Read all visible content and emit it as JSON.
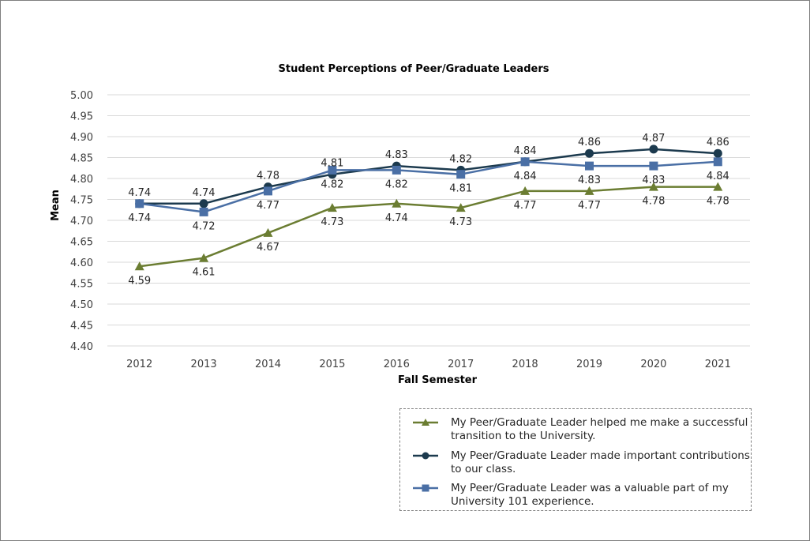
{
  "chart_data": {
    "type": "line",
    "title": "Student Perceptions of Peer/Graduate Leaders",
    "xlabel": "Fall Semester",
    "ylabel": "Mean",
    "categories": [
      "2012",
      "2013",
      "2014",
      "2015",
      "2016",
      "2017",
      "2018",
      "2019",
      "2020",
      "2021"
    ],
    "ylim": [
      4.4,
      5.0
    ],
    "yticks": [
      "4.40",
      "4.45",
      "4.50",
      "4.55",
      "4.60",
      "4.65",
      "4.70",
      "4.75",
      "4.80",
      "4.85",
      "4.90",
      "4.95",
      "5.00"
    ],
    "grid": true,
    "legend_position": "bottom-right",
    "series": [
      {
        "name": "My Peer/Graduate Leader helped me make a successful transition to the University.",
        "marker": "triangle",
        "color": "#6b7d32",
        "label_position": "below",
        "values": [
          4.59,
          4.61,
          4.67,
          4.73,
          4.74,
          4.73,
          4.77,
          4.77,
          4.78,
          4.78
        ]
      },
      {
        "name": "My Peer/Graduate Leader made important contributions to our class.",
        "marker": "circle",
        "color": "#1c3a4e",
        "label_position": "above",
        "values": [
          4.74,
          4.74,
          4.78,
          4.81,
          4.83,
          4.82,
          4.84,
          4.86,
          4.87,
          4.86
        ]
      },
      {
        "name": "My Peer/Graduate Leader was a valuable part of my University 101 experience.",
        "marker": "square",
        "color": "#4a6fa5",
        "label_position": "below",
        "values": [
          4.74,
          4.72,
          4.77,
          4.82,
          4.82,
          4.81,
          4.84,
          4.83,
          4.83,
          4.84
        ]
      }
    ]
  }
}
